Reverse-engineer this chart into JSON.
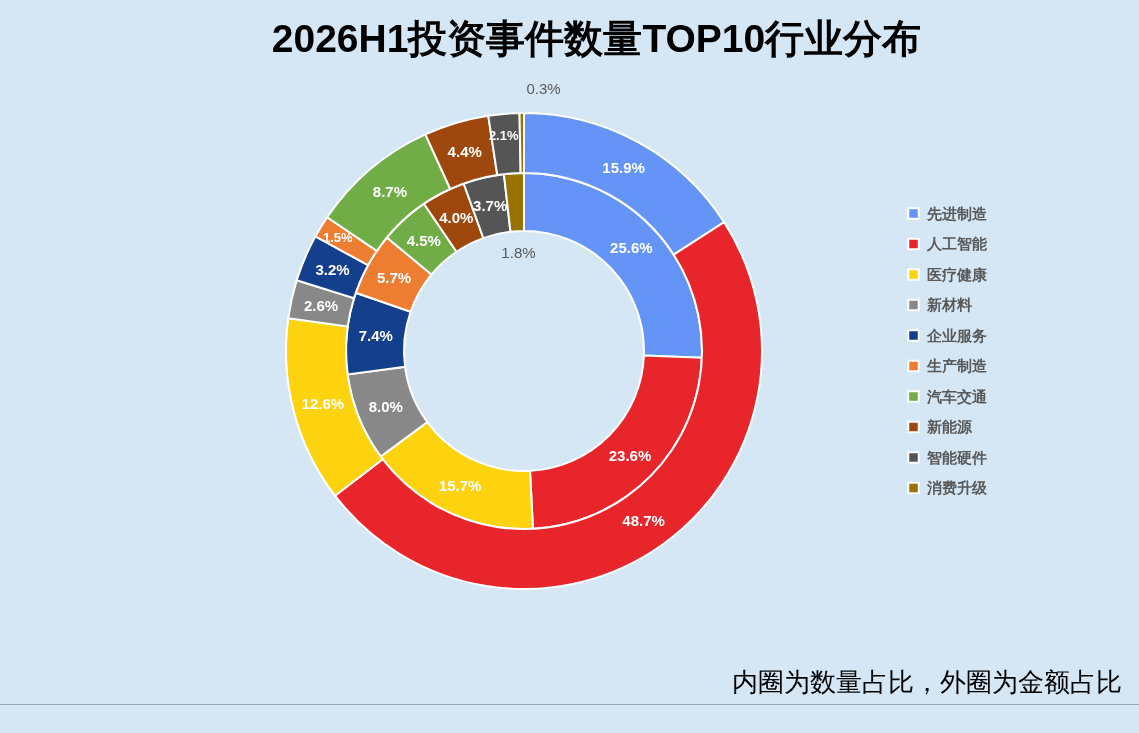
{
  "chart_data": {
    "type": "donut",
    "title": "2026H1投资事件数量TOP10行业分布",
    "categories": [
      "先进制造",
      "人工智能",
      "医疗健康",
      "新材料",
      "企业服务",
      "生产制造",
      "汽车交通",
      "新能源",
      "智能硬件",
      "消费升级"
    ],
    "colors": [
      "#6394f6",
      "#e8252a",
      "#fdd20e",
      "#888888",
      "#133f8c",
      "#ed7d31",
      "#70ad47",
      "#9e480e",
      "#555555",
      "#997300"
    ],
    "series": [
      {
        "values": [
          25.6,
          23.6,
          15.7,
          8.0,
          7.4,
          5.7,
          4.5,
          4.0,
          3.7,
          1.8
        ],
        "value_labels": [
          "25.6%",
          "23.6%",
          "15.7%",
          "8.0%",
          "7.4%",
          "5.7%",
          "4.5%",
          "4.0%",
          "3.7%",
          "1.8%"
        ]
      },
      {
        "values": [
          15.9,
          48.7,
          12.6,
          2.6,
          3.2,
          1.5,
          8.7,
          4.4,
          2.1,
          0.3
        ],
        "value_labels": [
          "15.9%",
          "48.7%",
          "12.6%",
          "2.6%",
          "3.2%",
          "1.5%",
          "8.7%",
          "4.4%",
          "2.1%",
          "0.3%"
        ]
      }
    ],
    "legend": "right",
    "annotations": [
      "内圈为数量占比，外圈为金额占比"
    ]
  }
}
